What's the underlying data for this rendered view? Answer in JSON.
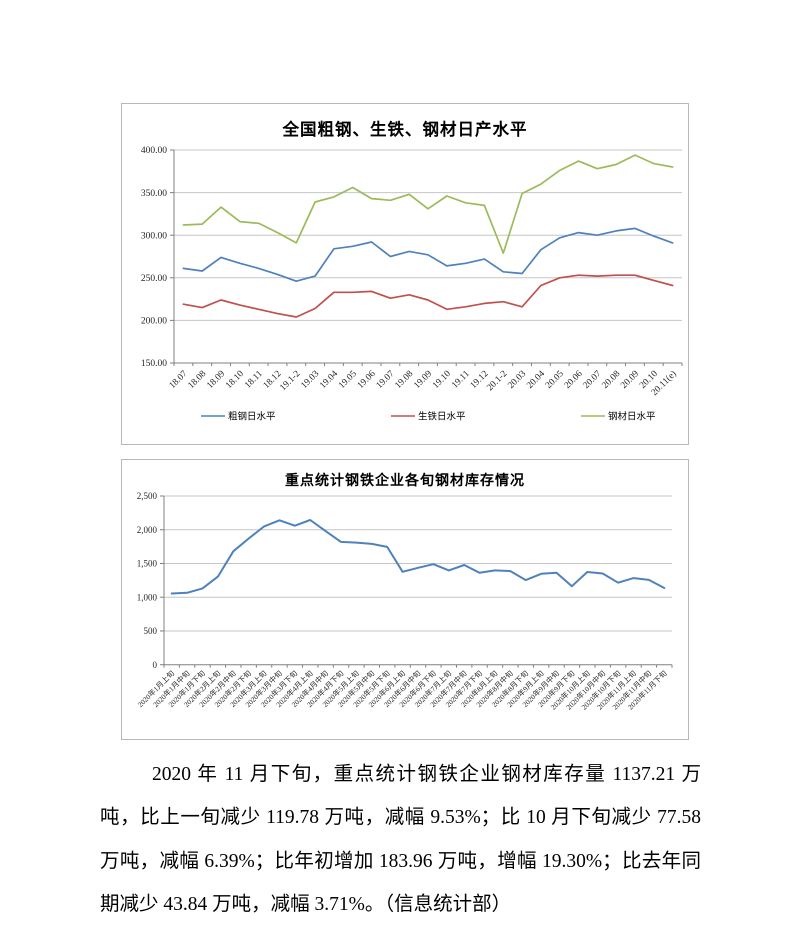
{
  "page": {
    "background": "#ffffff"
  },
  "chart_data": [
    {
      "type": "line",
      "title": "全国粗钢、生铁、钢材日产水平",
      "xlabel": "",
      "ylabel": "",
      "ylim": [
        150,
        400
      ],
      "y_step": 50,
      "y_tick_labels": [
        "400.00",
        "350.00",
        "300.00",
        "250.00",
        "200.00",
        "150.00"
      ],
      "grid": true,
      "legend_position": "bottom",
      "categories": [
        "18.07",
        "18.08",
        "18.09",
        "18.10",
        "18.11",
        "18.12",
        "19.1-2",
        "19.03",
        "19.04",
        "19.05",
        "19.06",
        "19.07",
        "19.08",
        "19.09",
        "19.10",
        "19.11",
        "19.12",
        "20.1-2",
        "20.03",
        "20.04",
        "20.05",
        "20.06",
        "20.07",
        "20.08",
        "20.09",
        "20.10",
        "20.11(e)"
      ],
      "series": [
        {
          "name": "粗钢日水平",
          "color": "#4F81BD",
          "values": [
            261,
            258,
            274,
            267,
            261,
            254,
            246,
            252,
            284,
            287,
            292,
            275,
            281,
            277,
            264,
            267,
            272,
            257,
            255,
            283,
            297,
            303,
            300,
            305,
            308,
            299,
            291
          ]
        },
        {
          "name": "生铁日水平",
          "color": "#C0504D",
          "values": [
            219,
            215,
            224,
            218,
            213,
            208,
            204,
            214,
            233,
            233,
            234,
            226,
            230,
            224,
            213,
            216,
            220,
            222,
            216,
            241,
            250,
            253,
            252,
            253,
            253,
            247,
            241
          ]
        },
        {
          "name": "钢材日水平",
          "color": "#9BBB59",
          "values": [
            312,
            313,
            333,
            316,
            314,
            303,
            291,
            339,
            345,
            356,
            343,
            341,
            348,
            331,
            346,
            338,
            335,
            279,
            349,
            360,
            376,
            387,
            378,
            383,
            394,
            384,
            380
          ]
        }
      ]
    },
    {
      "type": "line",
      "title": "重点统计钢铁企业各旬钢材库存情况",
      "xlabel": "",
      "ylabel": "",
      "ylim": [
        0,
        2500
      ],
      "y_step": 500,
      "y_tick_labels": [
        "2,500",
        "2,000",
        "1,500",
        "1,000",
        "500",
        "0"
      ],
      "grid": true,
      "legend_position": "none",
      "categories": [
        "2020年1月上旬",
        "2020年1月中旬",
        "2020年1月下旬",
        "2020年2月上旬",
        "2020年2月中旬",
        "2020年2月下旬",
        "2020年3月上旬",
        "2020年3月中旬",
        "2020年3月下旬",
        "2020年4月上旬",
        "2020年4月中旬",
        "2020年4月下旬",
        "2020年5月上旬",
        "2020年5月中旬",
        "2020年5月下旬",
        "2020年6月上旬",
        "2020年6月中旬",
        "2020年6月下旬",
        "2020年7月上旬",
        "2020年7月中旬",
        "2020年7月下旬",
        "2020年8月上旬",
        "2020年8月中旬",
        "2020年8月下旬",
        "2020年9月上旬",
        "2020年9月中旬",
        "2020年9月下旬",
        "2020年10月上旬",
        "2020年10月中旬",
        "2020年10月下旬",
        "2020年11月上旬",
        "2020年11月中旬",
        "2020年11月下旬"
      ],
      "series": [
        {
          "name": "钢材库存",
          "color": "#4F81BD",
          "values": [
            1055,
            1065,
            1130,
            1305,
            1680,
            1870,
            2050,
            2140,
            2060,
            2145,
            1980,
            1820,
            1810,
            1790,
            1745,
            1377,
            1436,
            1490,
            1397,
            1478,
            1362,
            1397,
            1387,
            1253,
            1347,
            1362,
            1164,
            1374,
            1351,
            1215,
            1283,
            1257,
            1137
          ]
        }
      ]
    }
  ],
  "paragraph": {
    "text": "2020 年 11 月下旬，重点统计钢铁企业钢材库存量 1137.21 万吨，比上一旬减少 119.78 万吨，减幅 9.53%；比 10 月下旬减少 77.58 万吨，减幅 6.39%；比年初增加 183.96 万吨，增幅 19.30%；比去年同期减少 43.84 万吨，减幅 3.71%。（信息统计部）"
  },
  "colors": {
    "axis": "#808080",
    "gridline": "#C6C6C6",
    "tick_text": "#262626",
    "chart_border": "#b8b8b8",
    "series_blue": "#4F81BD",
    "series_red": "#C0504D",
    "series_green": "#9BBB59"
  }
}
